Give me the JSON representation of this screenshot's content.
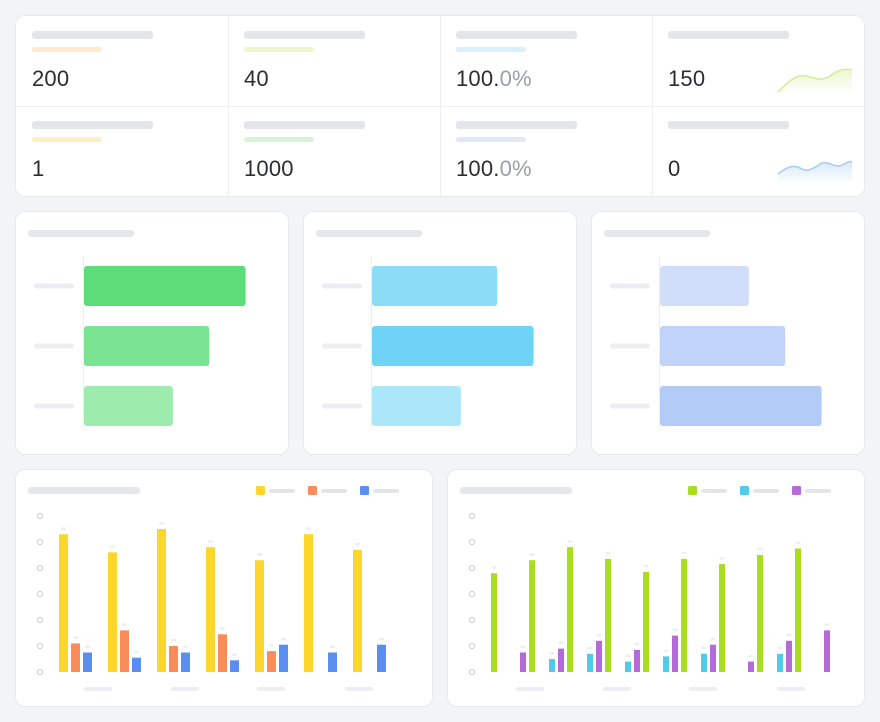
{
  "stats": [
    {
      "value": "200",
      "decimal": "",
      "accent": "#fde9cf"
    },
    {
      "value": "40",
      "decimal": "",
      "accent": "#eef5cf"
    },
    {
      "value": "100.",
      "decimal": "0%",
      "accent": "#dcf0fb"
    },
    {
      "value": "150",
      "decimal": "",
      "accent": "",
      "spark": "green"
    },
    {
      "value": "1",
      "decimal": "",
      "accent": "#fdefc6"
    },
    {
      "value": "1000",
      "decimal": "",
      "accent": "#d9f3d6"
    },
    {
      "value": "100.",
      "decimal": "0%",
      "accent": "#e1e9f9"
    },
    {
      "value": "0",
      "decimal": "",
      "accent": "",
      "spark": "blue"
    }
  ],
  "colors": {
    "spark_green": "#d4ec9c",
    "spark_blue": "#a9cdf3",
    "bar_sets": [
      [
        "#5cdd7a",
        "#7be492",
        "#9decae"
      ],
      [
        "#8cdcf7",
        "#6fd3f6",
        "#abe6f9"
      ],
      [
        "#d1defa",
        "#c1d3f8",
        "#b3cbf7"
      ]
    ],
    "grouped_left": [
      "#fcd62a",
      "#fa8c5a",
      "#5a8ef0"
    ],
    "grouped_right": [
      "#a8dd20",
      "#4fcbec",
      "#b56ad8"
    ]
  },
  "chart_data": [
    {
      "type": "bar",
      "orientation": "horizontal",
      "values": [
        80,
        62,
        44
      ],
      "xlim": [
        0,
        100
      ]
    },
    {
      "type": "bar",
      "orientation": "horizontal",
      "values": [
        62,
        80,
        44
      ],
      "xlim": [
        0,
        100
      ]
    },
    {
      "type": "bar",
      "orientation": "horizontal",
      "values": [
        44,
        62,
        80
      ],
      "xlim": [
        0,
        100
      ]
    },
    {
      "type": "bar",
      "ylim": [
        0,
        6
      ],
      "series": [
        {
          "values": [
            5.3,
            4.6,
            5.5,
            4.8,
            4.3,
            5.3,
            4.7
          ]
        },
        {
          "values": [
            1.1,
            1.6,
            1.0,
            1.45,
            0.8,
            null,
            null
          ]
        },
        {
          "values": [
            0.75,
            0.55,
            0.75,
            0.45,
            1.05,
            0.75,
            1.05
          ]
        }
      ]
    },
    {
      "type": "bar",
      "ylim": [
        0,
        6
      ],
      "series": [
        {
          "values": [
            3.8,
            4.3,
            4.8,
            4.35,
            3.85,
            4.35,
            4.15,
            4.5,
            4.75
          ]
        },
        {
          "values": [
            null,
            0.5,
            0.7,
            0.4,
            0.6,
            0.7,
            null,
            0.7,
            null
          ]
        },
        {
          "values": [
            0.75,
            0.9,
            1.2,
            0.85,
            1.4,
            1.05,
            0.4,
            1.2,
            1.6
          ]
        }
      ]
    }
  ]
}
